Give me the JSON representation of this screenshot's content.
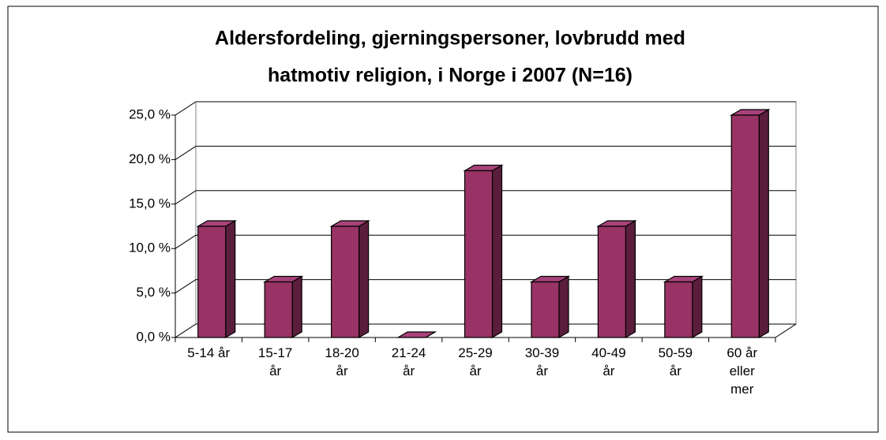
{
  "chart_data": {
    "type": "bar3d",
    "title": [
      "Aldersfordeling, gjerningspersoner, lovbrudd med",
      "hatmotiv religion, i Norge i 2007 (N=16)"
    ],
    "categories": [
      "5-14 år",
      "15-17 år",
      "18-20 år",
      "21-24 år",
      "25-29 år",
      "30-39 år",
      "40-49 år",
      "50-59 år",
      "60 år eller mer"
    ],
    "values": [
      12.5,
      6.25,
      12.5,
      0,
      18.75,
      6.25,
      12.5,
      6.25,
      25
    ],
    "color": "#993366",
    "ylim": [
      0,
      25
    ],
    "yticks": [
      {
        "value": 0,
        "label": "0,0 %"
      },
      {
        "value": 5,
        "label": "5,0 %"
      },
      {
        "value": 10,
        "label": "10,0 %"
      },
      {
        "value": 15,
        "label": "15,0 %"
      },
      {
        "value": 20,
        "label": "20,0 %"
      },
      {
        "value": 25,
        "label": "25,0 %"
      }
    ],
    "grid": true
  }
}
